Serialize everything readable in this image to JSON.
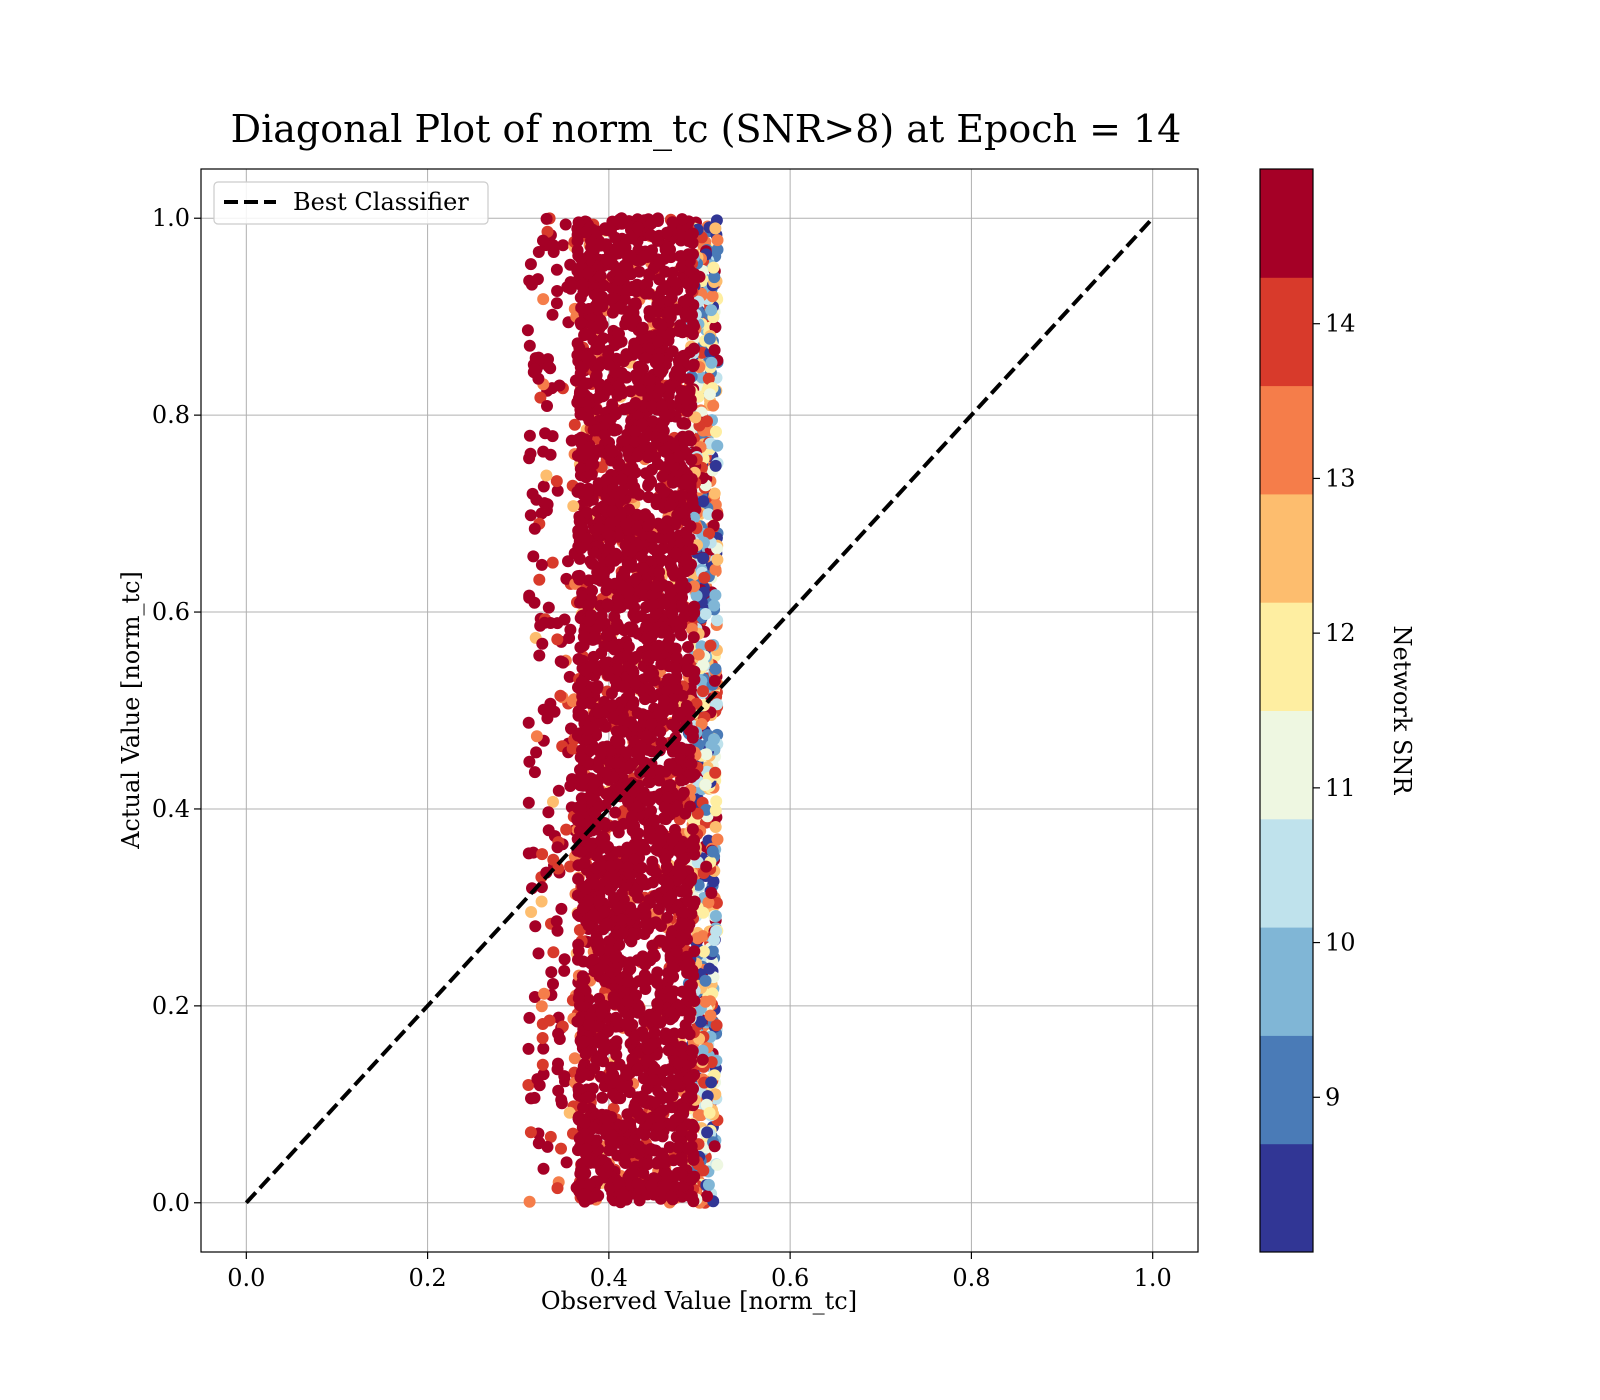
{
  "chart_data": {
    "type": "scatter",
    "title": "Diagonal Plot of norm_tc (SNR>8) at Epoch = 14",
    "xlabel": "Observed Value [norm_tc]",
    "ylabel": "Actual Value [norm_tc]",
    "xlim": [
      -0.05,
      1.05
    ],
    "ylim": [
      -0.05,
      1.05
    ],
    "xticks": [
      "0.0",
      "0.2",
      "0.4",
      "0.6",
      "0.8",
      "1.0"
    ],
    "yticks": [
      "0.0",
      "0.2",
      "0.4",
      "0.6",
      "0.8",
      "1.0"
    ],
    "grid": true,
    "legend": {
      "placement": "upper-left",
      "entries": [
        "Best Classifier"
      ]
    },
    "reference_line": {
      "name": "Best Classifier",
      "style": "dashed",
      "color": "#000000",
      "x": [
        0.0,
        1.0
      ],
      "y": [
        0.0,
        1.0
      ]
    },
    "scatter_cloud": {
      "x_core_range": [
        0.36,
        0.5
      ],
      "x_full_range": [
        0.31,
        0.52
      ],
      "y_range": [
        0.0,
        1.0
      ],
      "dominant_color_value": 14.8,
      "right_edge_low_snr": true
    },
    "colorbar": {
      "label": "Network SNR",
      "range": [
        8.0,
        15.0
      ],
      "ticks": [
        9,
        10,
        11,
        12,
        13,
        14
      ],
      "tick_labels": [
        "9",
        "10",
        "11",
        "12",
        "13",
        "14"
      ],
      "bins": [
        {
          "from": 8.0,
          "to": 8.7,
          "color": "#313695"
        },
        {
          "from": 8.7,
          "to": 9.4,
          "color": "#4a7bb7"
        },
        {
          "from": 9.4,
          "to": 10.1,
          "color": "#80b6d6"
        },
        {
          "from": 10.1,
          "to": 10.8,
          "color": "#bfe2ec"
        },
        {
          "from": 10.8,
          "to": 11.5,
          "color": "#eef7e1"
        },
        {
          "from": 11.5,
          "to": 12.2,
          "color": "#feeea1"
        },
        {
          "from": 12.2,
          "to": 12.9,
          "color": "#fdbd6e"
        },
        {
          "from": 12.9,
          "to": 13.6,
          "color": "#f57d4a"
        },
        {
          "from": 13.6,
          "to": 14.3,
          "color": "#d83a2b"
        },
        {
          "from": 14.3,
          "to": 15.0,
          "color": "#a50026"
        }
      ]
    }
  }
}
